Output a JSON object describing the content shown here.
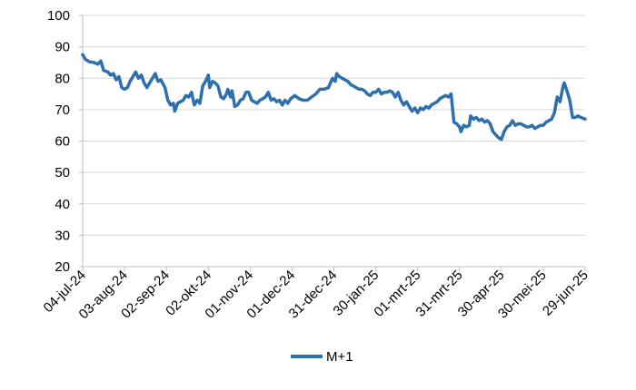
{
  "chart_data": {
    "type": "line",
    "title": "",
    "xlabel": "",
    "ylabel": "",
    "ylim": [
      20,
      100
    ],
    "yticks": [
      20,
      30,
      40,
      50,
      60,
      70,
      80,
      90,
      100
    ],
    "xlim": [
      "2024-07-04",
      "2025-06-29"
    ],
    "xticks": [
      {
        "date": "2024-07-04",
        "label": "04-jul-24"
      },
      {
        "date": "2024-08-03",
        "label": "03-aug-24"
      },
      {
        "date": "2024-09-02",
        "label": "02-sep-24"
      },
      {
        "date": "2024-10-02",
        "label": "02-okt-24"
      },
      {
        "date": "2024-11-01",
        "label": "01-nov-24"
      },
      {
        "date": "2024-12-01",
        "label": "01-dec-24"
      },
      {
        "date": "2024-12-31",
        "label": "31-dec-24"
      },
      {
        "date": "2025-01-30",
        "label": "30-jan-25"
      },
      {
        "date": "2025-03-01",
        "label": "01-mrt-25"
      },
      {
        "date": "2025-03-31",
        "label": "31-mrt-25"
      },
      {
        "date": "2025-04-30",
        "label": "30-apr-25"
      },
      {
        "date": "2025-05-30",
        "label": "30-mei-25"
      },
      {
        "date": "2025-06-29",
        "label": "29-jun-25"
      }
    ],
    "grid": "horizontal",
    "legend_position": "bottom",
    "series": [
      {
        "name": "M+1",
        "color": "#2E6FAE",
        "points": [
          [
            "2024-07-04",
            87.5
          ],
          [
            "2024-07-06",
            86
          ],
          [
            "2024-07-09",
            85.2
          ],
          [
            "2024-07-12",
            85
          ],
          [
            "2024-07-15",
            84.5
          ],
          [
            "2024-07-17",
            85.5
          ],
          [
            "2024-07-19",
            82.5
          ],
          [
            "2024-07-22",
            82
          ],
          [
            "2024-07-24",
            81
          ],
          [
            "2024-07-26",
            81.5
          ],
          [
            "2024-07-28",
            79.5
          ],
          [
            "2024-07-30",
            80.5
          ],
          [
            "2024-08-01",
            77
          ],
          [
            "2024-08-03",
            76.5
          ],
          [
            "2024-08-05",
            77
          ],
          [
            "2024-08-07",
            79
          ],
          [
            "2024-08-09",
            80.5
          ],
          [
            "2024-08-11",
            82
          ],
          [
            "2024-08-13",
            80
          ],
          [
            "2024-08-15",
            81
          ],
          [
            "2024-08-17",
            78.5
          ],
          [
            "2024-08-19",
            77
          ],
          [
            "2024-08-21",
            78.5
          ],
          [
            "2024-08-23",
            80
          ],
          [
            "2024-08-25",
            81.5
          ],
          [
            "2024-08-27",
            79
          ],
          [
            "2024-08-29",
            79.5
          ],
          [
            "2024-09-01",
            77
          ],
          [
            "2024-09-03",
            73
          ],
          [
            "2024-09-05",
            71.5
          ],
          [
            "2024-09-07",
            72
          ],
          [
            "2024-09-08",
            69.5
          ],
          [
            "2024-09-10",
            72
          ],
          [
            "2024-09-12",
            72.5
          ],
          [
            "2024-09-14",
            73
          ],
          [
            "2024-09-16",
            74.5
          ],
          [
            "2024-09-18",
            74
          ],
          [
            "2024-09-20",
            75.5
          ],
          [
            "2024-09-22",
            71.5
          ],
          [
            "2024-09-24",
            73
          ],
          [
            "2024-09-26",
            72
          ],
          [
            "2024-09-28",
            77.5
          ],
          [
            "2024-09-30",
            79
          ],
          [
            "2024-10-02",
            81
          ],
          [
            "2024-10-03",
            77
          ],
          [
            "2024-10-05",
            79
          ],
          [
            "2024-10-07",
            78.5
          ],
          [
            "2024-10-09",
            77.5
          ],
          [
            "2024-10-11",
            74
          ],
          [
            "2024-10-13",
            73.5
          ],
          [
            "2024-10-15",
            75
          ],
          [
            "2024-10-16",
            76.5
          ],
          [
            "2024-10-18",
            74
          ],
          [
            "2024-10-19",
            76
          ],
          [
            "2024-10-21",
            71
          ],
          [
            "2024-10-23",
            71.5
          ],
          [
            "2024-10-25",
            73
          ],
          [
            "2024-10-27",
            73.5
          ],
          [
            "2024-10-29",
            75.5
          ],
          [
            "2024-10-31",
            75.5
          ],
          [
            "2024-11-02",
            73
          ],
          [
            "2024-11-04",
            72.5
          ],
          [
            "2024-11-06",
            72
          ],
          [
            "2024-11-08",
            73
          ],
          [
            "2024-11-10",
            73.5
          ],
          [
            "2024-11-12",
            74
          ],
          [
            "2024-11-14",
            75.5
          ],
          [
            "2024-11-16",
            73
          ],
          [
            "2024-11-18",
            73.5
          ],
          [
            "2024-11-20",
            72.5
          ],
          [
            "2024-11-22",
            73
          ],
          [
            "2024-11-24",
            71.5
          ],
          [
            "2024-11-26",
            73
          ],
          [
            "2024-11-28",
            72
          ],
          [
            "2024-11-30",
            73.5
          ],
          [
            "2024-12-03",
            74.5
          ],
          [
            "2024-12-06",
            73.5
          ],
          [
            "2024-12-09",
            73
          ],
          [
            "2024-12-12",
            73
          ],
          [
            "2024-12-15",
            74
          ],
          [
            "2024-12-18",
            75
          ],
          [
            "2024-12-21",
            76.5
          ],
          [
            "2024-12-24",
            76.5
          ],
          [
            "2024-12-27",
            77
          ],
          [
            "2024-12-30",
            80
          ],
          [
            "2025-01-01",
            79
          ],
          [
            "2025-01-02",
            81.5
          ],
          [
            "2025-01-04",
            80.5
          ],
          [
            "2025-01-06",
            80
          ],
          [
            "2025-01-08",
            79.5
          ],
          [
            "2025-01-10",
            79
          ],
          [
            "2025-01-12",
            78
          ],
          [
            "2025-01-14",
            77.5
          ],
          [
            "2025-01-16",
            77
          ],
          [
            "2025-01-18",
            76.5
          ],
          [
            "2025-01-20",
            76.5
          ],
          [
            "2025-01-22",
            76
          ],
          [
            "2025-01-24",
            75
          ],
          [
            "2025-01-26",
            74.5
          ],
          [
            "2025-01-28",
            75.5
          ],
          [
            "2025-01-30",
            75.5
          ],
          [
            "2025-02-01",
            76.5
          ],
          [
            "2025-02-03",
            75
          ],
          [
            "2025-02-05",
            75.5
          ],
          [
            "2025-02-07",
            75.5
          ],
          [
            "2025-02-09",
            76
          ],
          [
            "2025-02-11",
            75.5
          ],
          [
            "2025-02-13",
            74
          ],
          [
            "2025-02-15",
            75.5
          ],
          [
            "2025-02-17",
            73
          ],
          [
            "2025-02-19",
            71.5
          ],
          [
            "2025-02-21",
            72.5
          ],
          [
            "2025-02-23",
            71
          ],
          [
            "2025-02-25",
            69.5
          ],
          [
            "2025-02-27",
            70.5
          ],
          [
            "2025-03-01",
            69
          ],
          [
            "2025-03-03",
            70.5
          ],
          [
            "2025-03-05",
            70
          ],
          [
            "2025-03-07",
            71
          ],
          [
            "2025-03-09",
            70.5
          ],
          [
            "2025-03-11",
            71.5
          ],
          [
            "2025-03-13",
            72
          ],
          [
            "2025-03-15",
            72.5
          ],
          [
            "2025-03-17",
            73.5
          ],
          [
            "2025-03-19",
            74
          ],
          [
            "2025-03-21",
            74.5
          ],
          [
            "2025-03-23",
            74
          ],
          [
            "2025-03-25",
            75
          ],
          [
            "2025-03-27",
            66
          ],
          [
            "2025-03-29",
            65.5
          ],
          [
            "2025-03-31",
            64.5
          ],
          [
            "2025-04-01",
            63
          ],
          [
            "2025-04-03",
            65
          ],
          [
            "2025-04-05",
            64.5
          ],
          [
            "2025-04-07",
            65
          ],
          [
            "2025-04-08",
            68
          ],
          [
            "2025-04-10",
            67
          ],
          [
            "2025-04-12",
            67.5
          ],
          [
            "2025-04-14",
            66.5
          ],
          [
            "2025-04-16",
            67
          ],
          [
            "2025-04-18",
            66
          ],
          [
            "2025-04-20",
            66.5
          ],
          [
            "2025-04-22",
            65.5
          ],
          [
            "2025-04-24",
            63
          ],
          [
            "2025-04-26",
            62
          ],
          [
            "2025-04-28",
            61
          ],
          [
            "2025-04-30",
            60.5
          ],
          [
            "2025-05-02",
            63
          ],
          [
            "2025-05-04",
            64.5
          ],
          [
            "2025-05-06",
            65
          ],
          [
            "2025-05-08",
            66.5
          ],
          [
            "2025-05-10",
            65
          ],
          [
            "2025-05-12",
            65.5
          ],
          [
            "2025-05-14",
            65.5
          ],
          [
            "2025-05-16",
            65
          ],
          [
            "2025-05-18",
            64.5
          ],
          [
            "2025-05-20",
            64.5
          ],
          [
            "2025-05-22",
            65
          ],
          [
            "2025-05-24",
            64
          ],
          [
            "2025-05-26",
            64.5
          ],
          [
            "2025-05-28",
            65
          ],
          [
            "2025-05-30",
            65
          ],
          [
            "2025-06-01",
            66
          ],
          [
            "2025-06-03",
            66.5
          ],
          [
            "2025-06-05",
            67
          ],
          [
            "2025-06-07",
            69
          ],
          [
            "2025-06-09",
            74
          ],
          [
            "2025-06-11",
            72.5
          ],
          [
            "2025-06-13",
            77
          ],
          [
            "2025-06-14",
            78.5
          ],
          [
            "2025-06-16",
            76
          ],
          [
            "2025-06-18",
            73
          ],
          [
            "2025-06-20",
            67.5
          ],
          [
            "2025-06-22",
            67.5
          ],
          [
            "2025-06-24",
            68
          ],
          [
            "2025-06-26",
            67.5
          ],
          [
            "2025-06-29",
            67
          ]
        ]
      }
    ]
  }
}
